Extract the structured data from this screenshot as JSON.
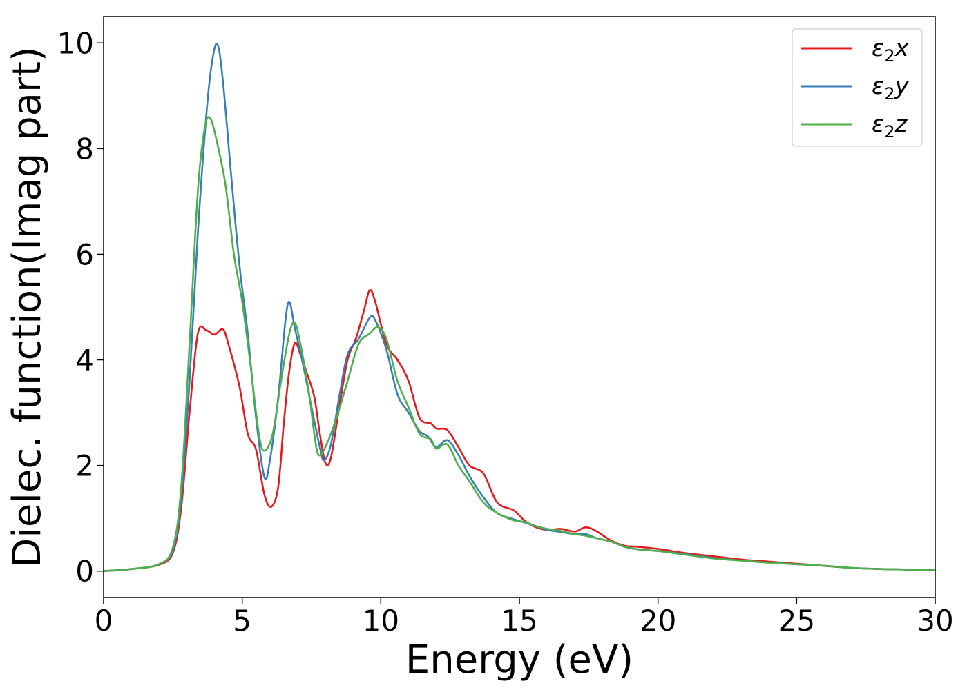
{
  "chart_data": {
    "type": "line",
    "title": "",
    "xlabel": "Energy (eV)",
    "ylabel": "Dielec. function(Imag part)",
    "xlim": [
      0,
      30
    ],
    "ylim": [
      -0.5,
      10.5
    ],
    "xticks": [
      0,
      5,
      10,
      15,
      20,
      25,
      30
    ],
    "yticks": [
      0,
      2,
      4,
      6,
      8,
      10
    ],
    "xtick_labels": [
      "0",
      "5",
      "10",
      "15",
      "20",
      "25",
      "30"
    ],
    "ytick_labels": [
      "0",
      "2",
      "4",
      "6",
      "8",
      "10"
    ],
    "grid": false,
    "legend_position": "top-right",
    "series": [
      {
        "name": "ε₂x",
        "name_parts": [
          "ε",
          "2",
          "x"
        ],
        "color": "#e41a1c",
        "points": [
          [
            0,
            0
          ],
          [
            1,
            0.04
          ],
          [
            2,
            0.12
          ],
          [
            2.5,
            0.35
          ],
          [
            2.8,
            1.2
          ],
          [
            3.1,
            3.0
          ],
          [
            3.4,
            4.5
          ],
          [
            3.7,
            4.56
          ],
          [
            4.0,
            4.48
          ],
          [
            4.3,
            4.58
          ],
          [
            4.5,
            4.3
          ],
          [
            4.9,
            3.5
          ],
          [
            5.2,
            2.6
          ],
          [
            5.5,
            2.3
          ],
          [
            5.8,
            1.45
          ],
          [
            6.05,
            1.22
          ],
          [
            6.3,
            1.6
          ],
          [
            6.5,
            2.8
          ],
          [
            6.7,
            3.8
          ],
          [
            6.9,
            4.32
          ],
          [
            7.1,
            4.1
          ],
          [
            7.3,
            3.8
          ],
          [
            7.6,
            3.3
          ],
          [
            7.8,
            2.6
          ],
          [
            8.0,
            2.05
          ],
          [
            8.2,
            2.15
          ],
          [
            8.5,
            3.1
          ],
          [
            8.8,
            4.0
          ],
          [
            9.1,
            4.4
          ],
          [
            9.4,
            4.95
          ],
          [
            9.6,
            5.32
          ],
          [
            9.8,
            5.1
          ],
          [
            10.2,
            4.3
          ],
          [
            10.6,
            4.0
          ],
          [
            11.0,
            3.6
          ],
          [
            11.4,
            2.9
          ],
          [
            11.8,
            2.8
          ],
          [
            12.0,
            2.7
          ],
          [
            12.4,
            2.67
          ],
          [
            12.8,
            2.35
          ],
          [
            13.2,
            2.0
          ],
          [
            13.7,
            1.85
          ],
          [
            14.2,
            1.3
          ],
          [
            14.8,
            1.15
          ],
          [
            15.2,
            0.95
          ],
          [
            15.6,
            0.83
          ],
          [
            16.0,
            0.78
          ],
          [
            16.5,
            0.8
          ],
          [
            17.0,
            0.75
          ],
          [
            17.4,
            0.83
          ],
          [
            17.8,
            0.75
          ],
          [
            18.3,
            0.58
          ],
          [
            18.8,
            0.48
          ],
          [
            19.3,
            0.46
          ],
          [
            20.0,
            0.42
          ],
          [
            21.0,
            0.34
          ],
          [
            22.0,
            0.28
          ],
          [
            23.0,
            0.22
          ],
          [
            24.0,
            0.18
          ],
          [
            25.0,
            0.14
          ],
          [
            26.0,
            0.1
          ],
          [
            27.0,
            0.06
          ],
          [
            28.0,
            0.04
          ],
          [
            29.0,
            0.03
          ],
          [
            30.0,
            0.02
          ]
        ]
      },
      {
        "name": "ε₂y",
        "name_parts": [
          "ε",
          "2",
          "y"
        ],
        "color": "#377eb8",
        "points": [
          [
            0,
            0
          ],
          [
            1,
            0.04
          ],
          [
            2,
            0.13
          ],
          [
            2.5,
            0.4
          ],
          [
            2.8,
            1.4
          ],
          [
            3.1,
            3.6
          ],
          [
            3.4,
            6.4
          ],
          [
            3.7,
            8.6
          ],
          [
            3.9,
            9.6
          ],
          [
            4.1,
            9.98
          ],
          [
            4.3,
            9.3
          ],
          [
            4.6,
            7.5
          ],
          [
            4.9,
            5.8
          ],
          [
            5.2,
            4.5
          ],
          [
            5.5,
            2.9
          ],
          [
            5.8,
            1.78
          ],
          [
            6.0,
            2.1
          ],
          [
            6.3,
            3.3
          ],
          [
            6.55,
            4.7
          ],
          [
            6.7,
            5.1
          ],
          [
            6.9,
            4.6
          ],
          [
            7.2,
            3.9
          ],
          [
            7.5,
            3.1
          ],
          [
            7.8,
            2.35
          ],
          [
            7.95,
            2.1
          ],
          [
            8.2,
            2.4
          ],
          [
            8.5,
            3.3
          ],
          [
            8.8,
            4.1
          ],
          [
            9.2,
            4.4
          ],
          [
            9.6,
            4.8
          ],
          [
            9.8,
            4.75
          ],
          [
            10.2,
            4.2
          ],
          [
            10.6,
            3.35
          ],
          [
            11.0,
            3.0
          ],
          [
            11.4,
            2.65
          ],
          [
            11.7,
            2.55
          ],
          [
            12.0,
            2.35
          ],
          [
            12.4,
            2.48
          ],
          [
            12.8,
            2.2
          ],
          [
            13.2,
            1.8
          ],
          [
            13.7,
            1.4
          ],
          [
            14.2,
            1.1
          ],
          [
            14.8,
            0.98
          ],
          [
            15.2,
            0.92
          ],
          [
            15.6,
            0.85
          ],
          [
            16.0,
            0.78
          ],
          [
            16.5,
            0.74
          ],
          [
            17.0,
            0.7
          ],
          [
            17.4,
            0.7
          ],
          [
            17.8,
            0.62
          ],
          [
            18.3,
            0.56
          ],
          [
            18.8,
            0.46
          ],
          [
            19.3,
            0.41
          ],
          [
            20.0,
            0.38
          ],
          [
            21.0,
            0.32
          ],
          [
            22.0,
            0.25
          ],
          [
            23.0,
            0.2
          ],
          [
            24.0,
            0.16
          ],
          [
            25.0,
            0.13
          ],
          [
            26.0,
            0.1
          ],
          [
            27.0,
            0.06
          ],
          [
            28.0,
            0.04
          ],
          [
            29.0,
            0.03
          ],
          [
            30.0,
            0.02
          ]
        ]
      },
      {
        "name": "ε₂z",
        "name_parts": [
          "ε",
          "2",
          "z"
        ],
        "color": "#4daf4a",
        "points": [
          [
            0,
            0
          ],
          [
            1,
            0.04
          ],
          [
            2,
            0.13
          ],
          [
            2.5,
            0.45
          ],
          [
            2.8,
            1.6
          ],
          [
            3.1,
            4.3
          ],
          [
            3.4,
            7.2
          ],
          [
            3.65,
            8.4
          ],
          [
            3.85,
            8.57
          ],
          [
            4.1,
            8.1
          ],
          [
            4.4,
            7.3
          ],
          [
            4.7,
            6.0
          ],
          [
            5.0,
            5.1
          ],
          [
            5.3,
            3.9
          ],
          [
            5.6,
            2.6
          ],
          [
            5.8,
            2.28
          ],
          [
            6.1,
            2.6
          ],
          [
            6.4,
            3.6
          ],
          [
            6.7,
            4.5
          ],
          [
            6.9,
            4.7
          ],
          [
            7.1,
            4.3
          ],
          [
            7.4,
            3.4
          ],
          [
            7.6,
            2.6
          ],
          [
            7.75,
            2.2
          ],
          [
            8.0,
            2.35
          ],
          [
            8.4,
            2.9
          ],
          [
            8.8,
            3.6
          ],
          [
            9.2,
            4.3
          ],
          [
            9.6,
            4.5
          ],
          [
            9.9,
            4.62
          ],
          [
            10.2,
            4.4
          ],
          [
            10.6,
            3.6
          ],
          [
            11.0,
            3.1
          ],
          [
            11.4,
            2.6
          ],
          [
            11.8,
            2.5
          ],
          [
            12.0,
            2.32
          ],
          [
            12.4,
            2.4
          ],
          [
            12.8,
            2.0
          ],
          [
            13.2,
            1.7
          ],
          [
            13.7,
            1.3
          ],
          [
            14.2,
            1.1
          ],
          [
            14.8,
            0.96
          ],
          [
            15.2,
            0.93
          ],
          [
            15.6,
            0.85
          ],
          [
            16.0,
            0.8
          ],
          [
            16.5,
            0.76
          ],
          [
            17.0,
            0.7
          ],
          [
            17.4,
            0.67
          ],
          [
            17.8,
            0.62
          ],
          [
            18.3,
            0.56
          ],
          [
            18.8,
            0.46
          ],
          [
            19.3,
            0.41
          ],
          [
            20.0,
            0.38
          ],
          [
            21.0,
            0.31
          ],
          [
            22.0,
            0.24
          ],
          [
            23.0,
            0.2
          ],
          [
            24.0,
            0.16
          ],
          [
            25.0,
            0.13
          ],
          [
            26.0,
            0.1
          ],
          [
            27.0,
            0.06
          ],
          [
            28.0,
            0.04
          ],
          [
            29.0,
            0.03
          ],
          [
            30.0,
            0.02
          ]
        ]
      }
    ]
  }
}
